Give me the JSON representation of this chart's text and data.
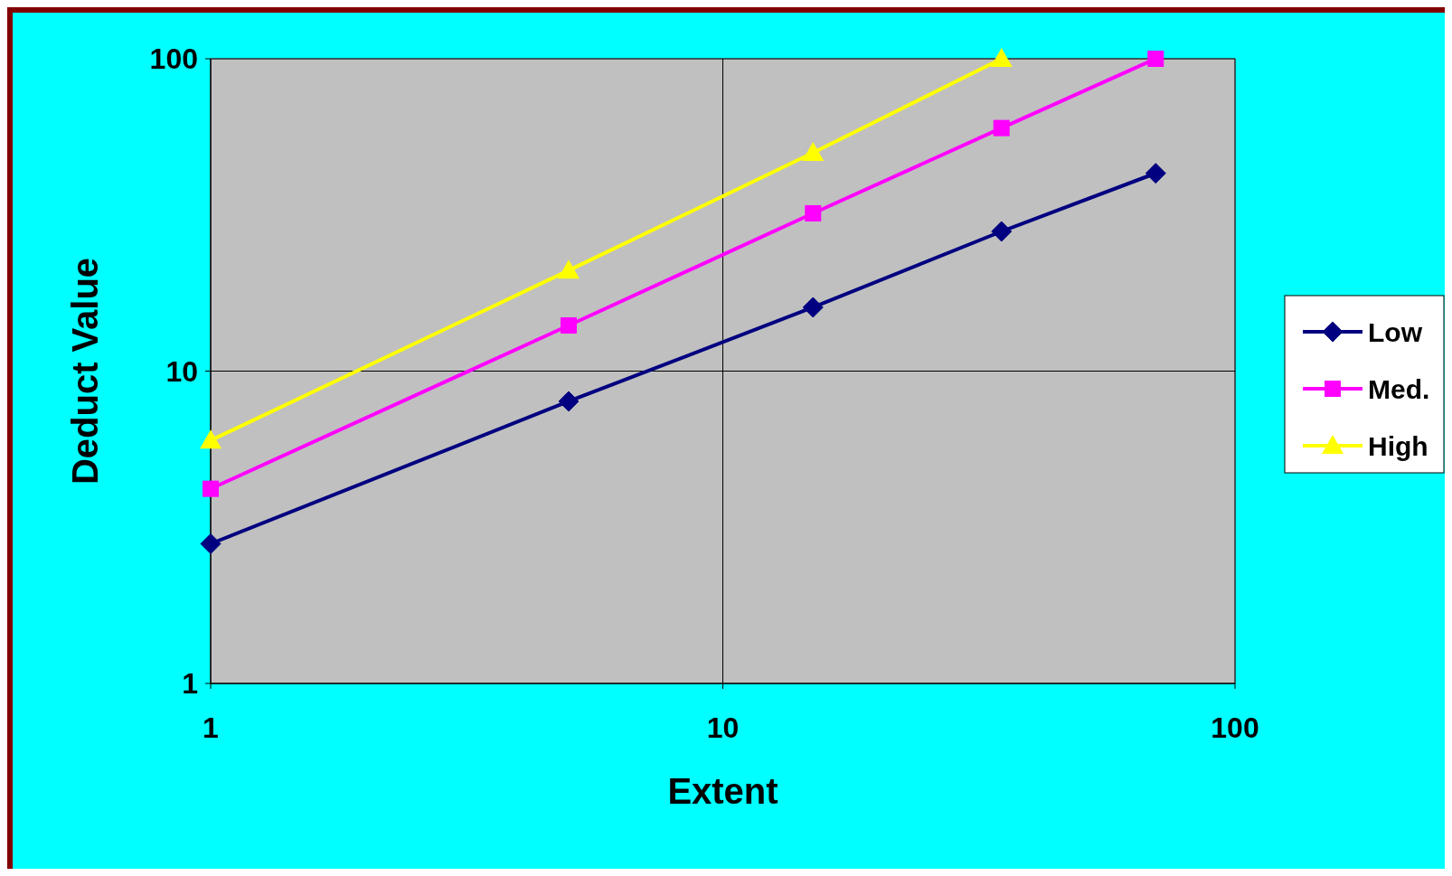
{
  "chart_data": {
    "type": "line",
    "xlabel": "Extent",
    "ylabel": "Deduct Value",
    "log": "xy",
    "x": [
      1,
      5,
      15,
      35,
      70
    ],
    "xlim": [
      1,
      100
    ],
    "xticks": [
      1,
      10,
      100
    ],
    "ylim": [
      1,
      100
    ],
    "yticks": [
      1,
      10,
      100
    ],
    "grid": true,
    "legend": "right",
    "series": [
      {
        "name": "Low",
        "color": "#000080",
        "marker": "diamond",
        "values": [
          2.8,
          8,
          16,
          28,
          43
        ]
      },
      {
        "name": "Med.",
        "color": "#ff00ff",
        "marker": "square",
        "values": [
          4.2,
          14,
          32,
          60,
          100
        ]
      },
      {
        "name": "High",
        "color": "#ffff00",
        "marker": "triangle",
        "values": [
          6,
          21,
          50,
          100,
          null
        ]
      }
    ]
  }
}
